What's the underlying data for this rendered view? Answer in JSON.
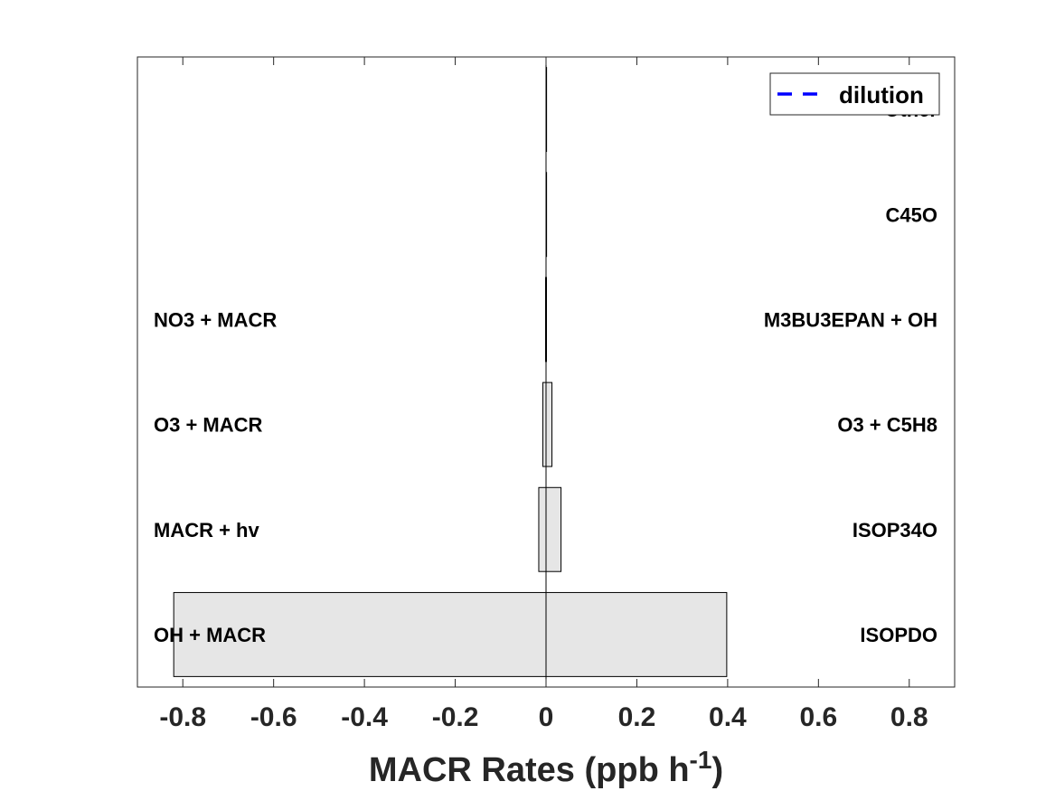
{
  "chart_data": {
    "type": "bar",
    "orientation": "horizontal",
    "xlabel": "MACR Rates (ppb h",
    "xlabel_superscript": "-1",
    "xlabel_suffix": ")",
    "xlim": [
      -0.9,
      0.9
    ],
    "xticks": [
      -0.8,
      -0.6,
      -0.4,
      -0.2,
      0,
      0.2,
      0.4,
      0.6,
      0.8
    ],
    "xtick_labels": [
      "-0.8",
      "-0.6",
      "-0.4",
      "-0.2",
      "0",
      "0.2",
      "0.4",
      "0.6",
      "0.8"
    ],
    "grid": false,
    "legend": {
      "placement": "top-right",
      "entries": [
        {
          "label": "dilution",
          "style": "dashed",
          "color": "#0000ff"
        }
      ]
    },
    "bar_color": "#e6e6e6",
    "bar_edge_color": "#000000",
    "rows": [
      {
        "loss_label": "OH + MACR",
        "loss": -0.82,
        "prod_label": "ISOPDO",
        "prod": 0.398
      },
      {
        "loss_label": "MACR + hv",
        "loss": -0.016,
        "prod_label": "ISOP34O",
        "prod": 0.033
      },
      {
        "loss_label": "O3 + MACR",
        "loss": -0.007,
        "prod_label": "O3 + C5H8",
        "prod": 0.013
      },
      {
        "loss_label": "NO3 + MACR",
        "loss": -0.001,
        "prod_label": "M3BU3EPAN + OH",
        "prod": 0.001
      },
      {
        "loss_label": "",
        "loss": 0,
        "prod_label": "C45O",
        "prod": 0.001
      },
      {
        "loss_label": "",
        "loss": 0,
        "prod_label": "Other",
        "prod": 0.001
      }
    ]
  }
}
